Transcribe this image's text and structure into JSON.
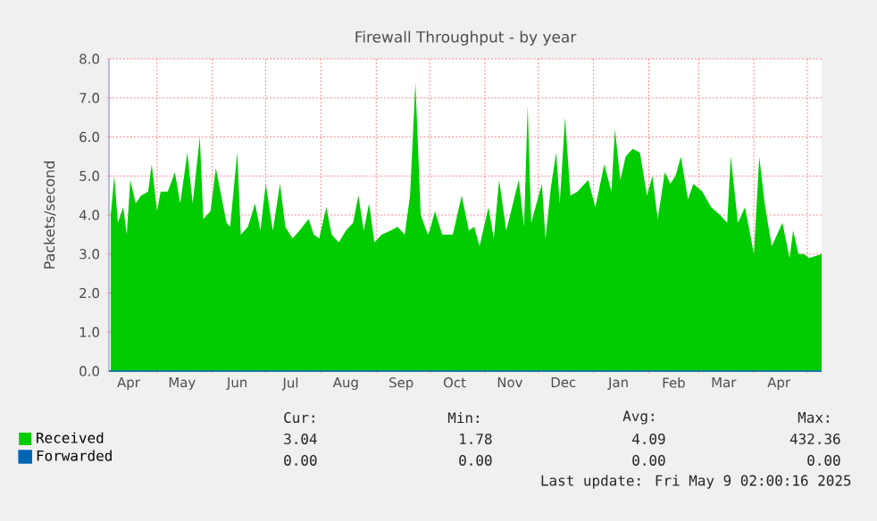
{
  "chart_data": {
    "type": "area",
    "title": "Firewall Throughput - by year",
    "ylabel": "Packets/second",
    "xlim": [
      "2024-04-04",
      "2025-05-09"
    ],
    "ylim": [
      0,
      8
    ],
    "yticks": [
      {
        "value": 0,
        "label": "0.0"
      },
      {
        "value": 1,
        "label": "1.0"
      },
      {
        "value": 2,
        "label": "2.0"
      },
      {
        "value": 3,
        "label": "3.0"
      },
      {
        "value": 4,
        "label": "4.0"
      },
      {
        "value": 5,
        "label": "5.0"
      },
      {
        "value": 6,
        "label": "6.0"
      },
      {
        "value": 7,
        "label": "7.0"
      },
      {
        "value": 8,
        "label": "8.0"
      }
    ],
    "xticks": [
      {
        "value": "2024-04-15",
        "label": "Apr"
      },
      {
        "value": "2024-05-01",
        "label": null
      },
      {
        "value": "2024-05-15",
        "label": "May"
      },
      {
        "value": "2024-06-01",
        "label": null
      },
      {
        "value": "2024-06-15",
        "label": "Jun"
      },
      {
        "value": "2024-07-01",
        "label": null
      },
      {
        "value": "2024-07-15",
        "label": "Jul"
      },
      {
        "value": "2024-08-01",
        "label": null
      },
      {
        "value": "2024-08-15",
        "label": "Aug"
      },
      {
        "value": "2024-09-01",
        "label": null
      },
      {
        "value": "2024-09-15",
        "label": "Sep"
      },
      {
        "value": "2024-10-01",
        "label": null
      },
      {
        "value": "2024-10-15",
        "label": "Oct"
      },
      {
        "value": "2024-11-01",
        "label": null
      },
      {
        "value": "2024-11-15",
        "label": "Nov"
      },
      {
        "value": "2024-12-01",
        "label": null
      },
      {
        "value": "2024-12-15",
        "label": "Dec"
      },
      {
        "value": "2025-01-01",
        "label": null
      },
      {
        "value": "2025-01-15",
        "label": "Jan"
      },
      {
        "value": "2025-02-01",
        "label": null
      },
      {
        "value": "2025-02-15",
        "label": "Feb"
      },
      {
        "value": "2025-03-01",
        "label": null
      },
      {
        "value": "2025-03-15",
        "label": "Mar"
      },
      {
        "value": "2025-04-01",
        "label": null
      },
      {
        "value": "2025-04-15",
        "label": "Apr"
      },
      {
        "value": "2025-05-01",
        "label": null
      }
    ],
    "grid": true,
    "legend": "bottom left",
    "series": [
      {
        "name": "Received",
        "color": "#00cc00",
        "type": "area",
        "x": [
          "2024-04-05",
          "2024-04-07",
          "2024-04-09",
          "2024-04-12",
          "2024-04-14",
          "2024-04-16",
          "2024-04-19",
          "2024-04-22",
          "2024-04-26",
          "2024-04-28",
          "2024-05-01",
          "2024-05-03",
          "2024-05-07",
          "2024-05-11",
          "2024-05-14",
          "2024-05-18",
          "2024-05-21",
          "2024-05-25",
          "2024-05-27",
          "2024-05-31",
          "2024-06-03",
          "2024-06-06",
          "2024-06-09",
          "2024-06-11",
          "2024-06-15",
          "2024-06-17",
          "2024-06-21",
          "2024-06-25",
          "2024-06-28",
          "2024-07-01",
          "2024-07-05",
          "2024-07-09",
          "2024-07-12",
          "2024-07-16",
          "2024-07-20",
          "2024-07-25",
          "2024-07-28",
          "2024-07-31",
          "2024-08-04",
          "2024-08-07",
          "2024-08-11",
          "2024-08-15",
          "2024-08-19",
          "2024-08-22",
          "2024-08-25",
          "2024-08-28",
          "2024-08-31",
          "2024-09-04",
          "2024-09-09",
          "2024-09-13",
          "2024-09-17",
          "2024-09-20",
          "2024-09-23",
          "2024-09-26",
          "2024-09-30",
          "2024-10-01",
          "2024-10-04",
          "2024-10-08",
          "2024-10-14",
          "2024-10-19",
          "2024-10-23",
          "2024-10-26",
          "2024-10-29",
          "2024-11-03",
          "2024-11-06",
          "2024-11-09",
          "2024-11-13",
          "2024-11-20",
          "2024-11-23",
          "2024-11-25",
          "2024-11-27",
          "2024-12-03",
          "2024-12-05",
          "2024-12-08",
          "2024-12-11",
          "2024-12-13",
          "2024-12-16",
          "2024-12-19",
          "2024-12-23",
          "2024-12-29",
          "2025-01-02",
          "2025-01-07",
          "2025-01-11",
          "2025-01-13",
          "2025-01-16",
          "2025-01-19",
          "2025-01-23",
          "2025-01-27",
          "2025-01-31",
          "2025-02-03",
          "2025-02-06",
          "2025-02-10",
          "2025-02-13",
          "2025-02-16",
          "2025-02-19",
          "2025-02-23",
          "2025-02-26",
          "2025-03-03",
          "2025-03-08",
          "2025-03-13",
          "2025-03-17",
          "2025-03-19",
          "2025-03-23",
          "2025-03-27",
          "2025-04-01",
          "2025-04-04",
          "2025-04-07",
          "2025-04-11",
          "2025-04-14",
          "2025-04-17",
          "2025-04-21",
          "2025-04-23",
          "2025-04-26",
          "2025-04-29",
          "2025-05-02",
          "2025-05-09"
        ],
        "values": [
          4.0,
          5.0,
          3.8,
          4.2,
          3.5,
          4.9,
          4.3,
          4.5,
          4.6,
          5.3,
          4.1,
          4.6,
          4.6,
          5.1,
          4.3,
          5.6,
          4.3,
          6.0,
          3.9,
          4.1,
          5.2,
          4.5,
          3.8,
          3.7,
          5.6,
          3.5,
          3.7,
          4.3,
          3.6,
          4.8,
          3.6,
          4.8,
          3.7,
          3.4,
          3.6,
          3.9,
          3.5,
          3.4,
          4.2,
          3.5,
          3.3,
          3.6,
          3.8,
          4.5,
          3.6,
          4.3,
          3.3,
          3.5,
          3.6,
          3.7,
          3.5,
          4.5,
          7.4,
          4.0,
          3.5,
          3.6,
          4.1,
          3.5,
          3.5,
          4.5,
          3.6,
          3.7,
          3.2,
          4.2,
          3.4,
          4.9,
          3.6,
          4.9,
          3.7,
          6.8,
          3.8,
          4.8,
          3.4,
          4.7,
          5.6,
          4.3,
          6.5,
          4.5,
          4.6,
          4.9,
          4.2,
          5.3,
          4.6,
          6.2,
          4.9,
          5.5,
          5.7,
          5.6,
          4.5,
          5.0,
          3.9,
          5.1,
          4.8,
          5.0,
          5.5,
          4.4,
          4.8,
          4.6,
          4.2,
          4.0,
          3.8,
          5.5,
          3.8,
          4.2,
          3.0,
          5.5,
          4.3,
          3.2,
          3.5,
          3.8,
          2.9,
          3.6,
          3.0,
          3.0,
          2.9,
          3.0
        ]
      },
      {
        "name": "Forwarded",
        "color": "#0066b3",
        "type": "line",
        "x": [
          "2024-04-04",
          "2025-05-09"
        ],
        "values": [
          0,
          0
        ]
      }
    ],
    "annotations": [
      "Cur:",
      "Min:",
      "Avg:",
      "Max:",
      "3.04",
      "1.78",
      "4.09",
      "432.36",
      "0.00",
      "0.00",
      "0.00",
      "0.00",
      "Last update: Fri May  9 02:00:16 2025"
    ]
  }
}
